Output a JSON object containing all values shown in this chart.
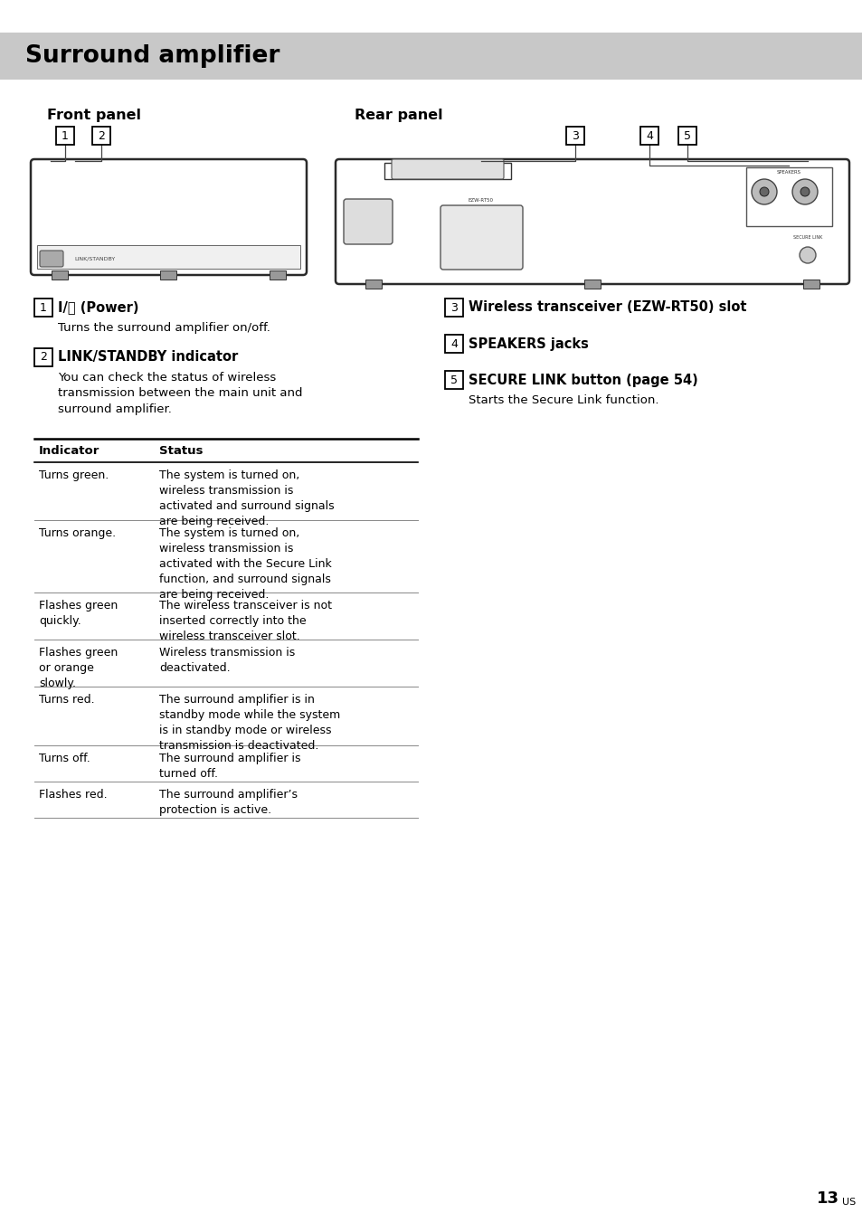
{
  "page_bg": "#ffffff",
  "header_bg": "#c8c8c8",
  "header_text": "Surround amplifier",
  "front_panel_label": "Front panel",
  "rear_panel_label": "Rear panel",
  "power_title": "I/⏻ (Power)",
  "power_desc": "Turns the surround amplifier on/off.",
  "link_title": "LINK/STANDBY indicator",
  "link_desc": "You can check the status of wireless\ntransmission between the main unit and\nsurround amplifier.",
  "item3_title": "Wireless transceiver (EZW-RT50) slot",
  "item4_title": "SPEAKERS jacks",
  "item5_title": "SECURE LINK button (page 54)",
  "item5_desc": "Starts the Secure Link function.",
  "table_headers": [
    "Indicator",
    "Status"
  ],
  "table_rows": [
    [
      "Turns green.",
      "The system is turned on,\nwireless transmission is\nactivated and surround signals\nare being received."
    ],
    [
      "Turns orange.",
      "The system is turned on,\nwireless transmission is\nactivated with the Secure Link\nfunction, and surround signals\nare being received."
    ],
    [
      "Flashes green\nquickly.",
      "The wireless transceiver is not\ninserted correctly into the\nwireless transceiver slot."
    ],
    [
      "Flashes green\nor orange\nslowly.",
      "Wireless transmission is\ndeactivated."
    ],
    [
      "Turns red.",
      "The surround amplifier is in\nstandby mode while the system\nis in standby mode or wireless\ntransmission is deactivated."
    ],
    [
      "Turns off.",
      "The surround amplifier is\nturned off."
    ],
    [
      "Flashes red.",
      "The surround amplifier’s\nprotection is active."
    ]
  ],
  "page_number": "13",
  "page_suffix": "US"
}
